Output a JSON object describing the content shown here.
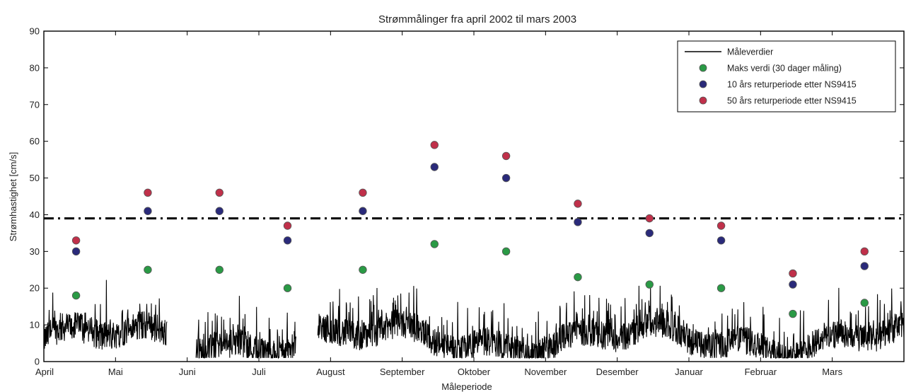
{
  "chart_data": {
    "type": "scatter",
    "title": "Strømmålinger fra april 2002 til mars 2003",
    "xlabel": "Måleperiode",
    "ylabel": "Strømhastighet [cm/s]",
    "ylim": [
      0,
      90
    ],
    "yticks": [
      0,
      10,
      20,
      30,
      40,
      50,
      60,
      70,
      80,
      90
    ],
    "categories": [
      "April",
      "Mai",
      "Juni",
      "Juli",
      "August",
      "September",
      "Oktober",
      "November",
      "Desember",
      "Januar",
      "Februar",
      "Mars"
    ],
    "grid": false,
    "legend_position": "top-right",
    "reference_line": {
      "y": 39,
      "style": "dash-dot",
      "color": "#000000"
    },
    "measurement_series": {
      "name": "Måleverdier",
      "color": "#000000",
      "gaps": [
        [
          1.72,
          2.12
        ],
        [
          3.52,
          3.82
        ]
      ],
      "typical_range": [
        1,
        18
      ]
    },
    "series": [
      {
        "name": "Maks verdi (30 dager måling)",
        "color": "#2a9a45",
        "points": [
          [
            0.45,
            18
          ],
          [
            1.45,
            25
          ],
          [
            2.45,
            25
          ],
          [
            3.4,
            20
          ],
          [
            4.45,
            25
          ],
          [
            5.45,
            32
          ],
          [
            6.45,
            30
          ],
          [
            7.45,
            23
          ],
          [
            8.45,
            21
          ],
          [
            9.45,
            20
          ],
          [
            10.45,
            13
          ],
          [
            11.45,
            16
          ]
        ]
      },
      {
        "name": "10 års returperiode etter NS9415",
        "color": "#2a2a7a",
        "points": [
          [
            0.45,
            30
          ],
          [
            1.45,
            41
          ],
          [
            2.45,
            41
          ],
          [
            3.4,
            33
          ],
          [
            4.45,
            41
          ],
          [
            5.45,
            53
          ],
          [
            6.45,
            50
          ],
          [
            7.45,
            38
          ],
          [
            8.45,
            35
          ],
          [
            9.45,
            33
          ],
          [
            10.45,
            21
          ],
          [
            11.45,
            26
          ]
        ]
      },
      {
        "name": "50 års returperiode etter NS9415",
        "color": "#c0304a",
        "points": [
          [
            0.45,
            33
          ],
          [
            1.45,
            46
          ],
          [
            2.45,
            46
          ],
          [
            3.4,
            37
          ],
          [
            4.45,
            46
          ],
          [
            5.45,
            59
          ],
          [
            6.45,
            56
          ],
          [
            7.45,
            43
          ],
          [
            8.45,
            39
          ],
          [
            9.45,
            37
          ],
          [
            10.45,
            24
          ],
          [
            11.45,
            30
          ]
        ]
      }
    ]
  }
}
